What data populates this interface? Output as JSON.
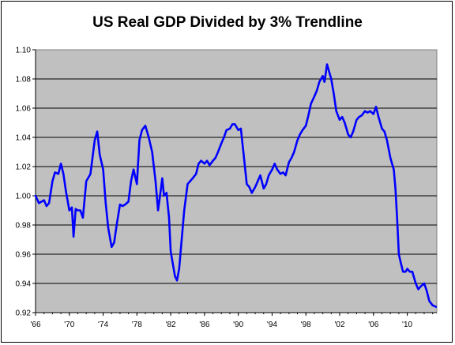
{
  "chart_data": {
    "type": "line",
    "title": "US Real GDP Divided by 3% Trendline",
    "xlabel": "",
    "ylabel": "",
    "ylim": [
      0.92,
      1.1
    ],
    "xlim": [
      1966,
      2013.5
    ],
    "grid": true,
    "legend": "none",
    "colors": {
      "plot_bg": "#c0c0c0",
      "line": "#0000ff",
      "grid": "#000000"
    },
    "y_ticks": [
      "0.92",
      "0.94",
      "0.96",
      "0.98",
      "1.00",
      "1.02",
      "1.04",
      "1.06",
      "1.08",
      "1.10"
    ],
    "x_ticks": [
      "'66",
      "'70",
      "'74",
      "'78",
      "'82",
      "'86",
      "'90",
      "'94",
      "'98",
      "'02",
      "'06",
      "'10"
    ],
    "series": [
      {
        "x": [
          1966.0,
          1966.4,
          1967.0,
          1967.3,
          1967.6,
          1968.0,
          1968.3,
          1968.7,
          1969.0,
          1969.3,
          1969.6,
          1970.0,
          1970.3,
          1970.5,
          1970.75,
          1971.0,
          1971.3,
          1971.6,
          1971.8,
          1972.0,
          1972.5,
          1973.0,
          1973.3,
          1973.6,
          1974.0,
          1974.3,
          1974.6,
          1975.0,
          1975.3,
          1975.6,
          1976.0,
          1976.3,
          1976.6,
          1977.0,
          1977.3,
          1977.6,
          1978.0,
          1978.3,
          1978.6,
          1979.0,
          1979.4,
          1979.8,
          1980.2,
          1980.5,
          1980.8,
          1981.0,
          1981.2,
          1981.5,
          1981.8,
          1982.0,
          1982.2,
          1982.5,
          1982.75,
          1983.0,
          1983.3,
          1983.6,
          1984.0,
          1984.3,
          1984.6,
          1985.0,
          1985.3,
          1985.6,
          1986.0,
          1986.3,
          1986.6,
          1987.0,
          1987.3,
          1987.6,
          1988.0,
          1988.3,
          1988.6,
          1989.0,
          1989.3,
          1989.6,
          1990.0,
          1990.3,
          1990.6,
          1991.0,
          1991.3,
          1991.6,
          1992.0,
          1992.3,
          1992.6,
          1993.0,
          1993.3,
          1993.6,
          1994.0,
          1994.3,
          1994.6,
          1995.0,
          1995.3,
          1995.6,
          1996.0,
          1996.3,
          1996.6,
          1997.0,
          1997.3,
          1997.6,
          1998.0,
          1998.3,
          1998.6,
          1999.0,
          1999.3,
          1999.6,
          2000.0,
          2000.2,
          2000.5,
          2000.8,
          2001.0,
          2001.3,
          2001.6,
          2002.0,
          2002.3,
          2002.6,
          2003.0,
          2003.3,
          2003.6,
          2004.0,
          2004.3,
          2004.6,
          2005.0,
          2005.3,
          2005.6,
          2006.0,
          2006.3,
          2006.6,
          2007.0,
          2007.3,
          2007.6,
          2008.0,
          2008.2,
          2008.4,
          2008.6,
          2008.8,
          2009.0,
          2009.2,
          2009.5,
          2009.8,
          2010.0,
          2010.3,
          2010.6,
          2011.0,
          2011.3,
          2011.6,
          2012.0,
          2012.3,
          2012.6,
          2013.0,
          2013.4
        ],
        "y": [
          1.0,
          0.995,
          0.997,
          0.993,
          0.995,
          1.01,
          1.016,
          1.015,
          1.022,
          1.015,
          1.003,
          0.99,
          0.992,
          0.972,
          0.991,
          0.99,
          0.99,
          0.985,
          0.997,
          1.01,
          1.015,
          1.038,
          1.044,
          1.028,
          1.018,
          0.995,
          0.978,
          0.965,
          0.968,
          0.98,
          0.994,
          0.993,
          0.994,
          0.996,
          1.01,
          1.018,
          1.008,
          1.038,
          1.045,
          1.048,
          1.04,
          1.03,
          1.01,
          0.99,
          1.003,
          1.012,
          1.0,
          1.002,
          0.985,
          0.962,
          0.955,
          0.945,
          0.942,
          0.95,
          0.97,
          0.99,
          1.008,
          1.01,
          1.012,
          1.015,
          1.022,
          1.024,
          1.022,
          1.024,
          1.021,
          1.024,
          1.026,
          1.03,
          1.036,
          1.04,
          1.045,
          1.046,
          1.049,
          1.049,
          1.045,
          1.046,
          1.03,
          1.008,
          1.006,
          1.002,
          1.006,
          1.01,
          1.014,
          1.005,
          1.008,
          1.014,
          1.018,
          1.022,
          1.018,
          1.015,
          1.016,
          1.014,
          1.023,
          1.026,
          1.03,
          1.038,
          1.042,
          1.045,
          1.048,
          1.055,
          1.063,
          1.068,
          1.072,
          1.078,
          1.082,
          1.078,
          1.09,
          1.084,
          1.08,
          1.07,
          1.058,
          1.052,
          1.054,
          1.05,
          1.042,
          1.04,
          1.044,
          1.052,
          1.054,
          1.055,
          1.058,
          1.057,
          1.058,
          1.056,
          1.061,
          1.054,
          1.046,
          1.044,
          1.038,
          1.026,
          1.022,
          1.018,
          1.005,
          0.985,
          0.96,
          0.955,
          0.948,
          0.948,
          0.95,
          0.948,
          0.948,
          0.94,
          0.936,
          0.938,
          0.94,
          0.935,
          0.928,
          0.925,
          0.924
        ]
      }
    ]
  }
}
